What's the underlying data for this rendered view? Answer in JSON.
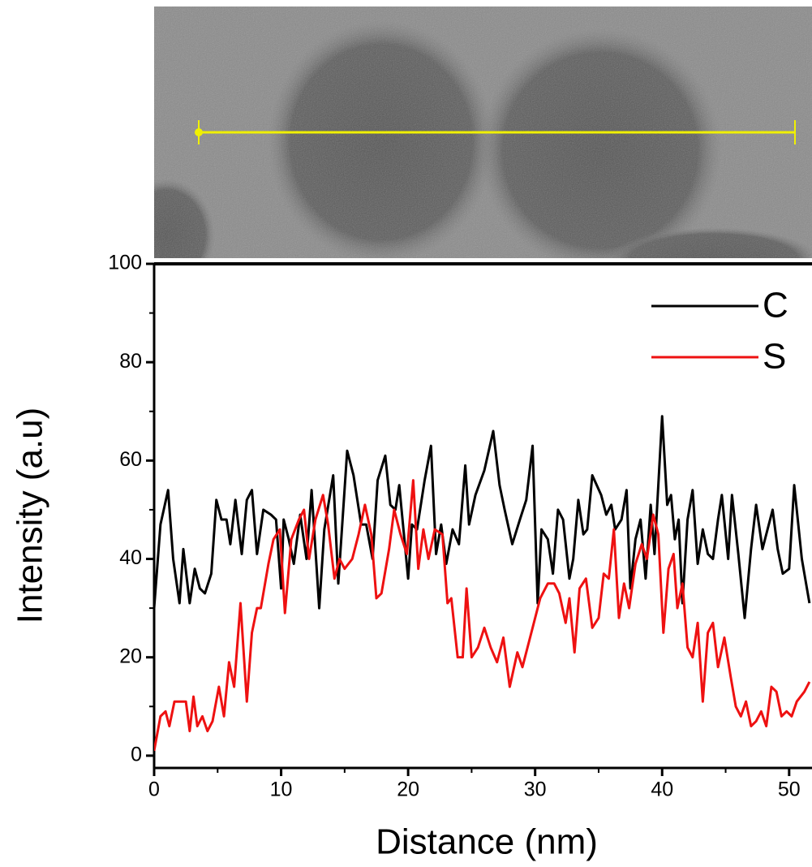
{
  "chart_data": {
    "type": "line",
    "x_label": "Distance (nm)",
    "y_label": "Intensity (a.u)",
    "xlim": [
      0,
      51.8
    ],
    "ylim": [
      -2.5,
      100
    ],
    "xticks": [
      0,
      10,
      20,
      30,
      40,
      50
    ],
    "yticks": [
      0,
      20,
      40,
      60,
      80,
      100
    ],
    "legend": "upper right",
    "series": [
      {
        "name": "C",
        "color": "#000000",
        "x": [
          0,
          0.5,
          1.1,
          1.5,
          2,
          2.3,
          2.8,
          3.2,
          3.6,
          4,
          4.5,
          4.9,
          5.3,
          5.7,
          6,
          6.4,
          6.9,
          7.3,
          7.7,
          8.1,
          8.6,
          9.2,
          9.6,
          10,
          10.2,
          10.6,
          11,
          11.5,
          12,
          12.4,
          13,
          13.4,
          14.1,
          14.5,
          15.2,
          15.7,
          16.3,
          16.7,
          17.2,
          17.6,
          18.2,
          18.6,
          19,
          19.3,
          20,
          20.3,
          20.7,
          21.3,
          21.8,
          22.2,
          22.6,
          23,
          23.5,
          24,
          24.5,
          24.8,
          25.3,
          26,
          26.7,
          27.2,
          27.6,
          28.2,
          28.8,
          29.3,
          29.8,
          30.2,
          30.5,
          31,
          31.4,
          31.8,
          32.2,
          32.7,
          33,
          33.4,
          33.8,
          34.1,
          34.5,
          35.2,
          35.6,
          36,
          36.3,
          36.8,
          37.2,
          37.5,
          37.9,
          38.3,
          38.7,
          39.1,
          39.4,
          40,
          40.4,
          40.7,
          41,
          41.3,
          41.6,
          42,
          42.4,
          42.8,
          43.2,
          43.6,
          44,
          44.4,
          44.7,
          45.2,
          45.5,
          46,
          46.5,
          47,
          47.4,
          47.9,
          48.3,
          48.7,
          49.1,
          49.5,
          50,
          50.4,
          51,
          51.6
        ],
        "values": [
          30,
          47,
          54,
          40,
          31,
          42,
          31,
          38,
          34,
          33,
          37,
          52,
          48,
          48,
          43,
          52,
          41,
          52,
          54,
          41,
          50,
          49,
          48,
          34,
          48,
          44,
          39,
          49,
          40,
          54,
          30,
          46,
          57,
          35,
          62,
          57,
          47,
          47,
          40,
          56,
          61,
          51,
          50,
          55,
          36,
          47,
          46,
          56,
          63,
          41,
          47,
          39,
          46,
          43,
          59,
          47,
          53,
          58,
          66,
          55,
          50,
          43,
          48,
          52,
          63,
          31,
          46,
          44,
          37,
          50,
          48,
          36,
          40,
          52,
          45,
          46,
          57,
          53,
          49,
          51,
          46,
          48,
          54,
          34,
          44,
          48,
          36,
          51,
          41,
          69,
          51,
          53,
          44,
          48,
          31,
          48,
          54,
          39,
          46,
          41,
          40,
          48,
          53,
          40,
          53,
          41,
          28,
          42,
          51,
          42,
          46,
          50,
          42,
          37,
          38,
          55,
          40,
          31
        ]
      },
      {
        "name": "S",
        "color": "#ee1111",
        "x": [
          0,
          0.5,
          0.9,
          1.2,
          1.6,
          2.2,
          2.5,
          2.8,
          3.1,
          3.4,
          3.8,
          4.2,
          4.6,
          5.1,
          5.5,
          5.9,
          6.3,
          6.8,
          7.3,
          7.7,
          8.1,
          8.4,
          9,
          9.4,
          9.9,
          10.3,
          10.8,
          11.4,
          11.8,
          12.2,
          12.7,
          13.3,
          13.7,
          14.2,
          14.6,
          15,
          15.6,
          16.1,
          16.6,
          17.1,
          17.5,
          17.9,
          18.5,
          18.9,
          19.4,
          19.9,
          20.4,
          20.8,
          21.2,
          21.6,
          22.1,
          22.7,
          23.1,
          23.4,
          23.9,
          24.3,
          24.6,
          25,
          25.5,
          26,
          26.5,
          27,
          27.5,
          28,
          28.6,
          29,
          29.8,
          30.4,
          31,
          31.5,
          31.9,
          32.4,
          32.7,
          33.1,
          33.5,
          34,
          34.5,
          35,
          35.4,
          35.8,
          36.2,
          36.6,
          37,
          37.4,
          37.9,
          38.4,
          38.8,
          39.3,
          39.7,
          40.1,
          40.5,
          40.9,
          41.2,
          41.6,
          42,
          42.4,
          42.8,
          43.2,
          43.6,
          44,
          44.4,
          44.9,
          45.4,
          45.8,
          46.2,
          46.6,
          47,
          47.4,
          47.8,
          48.2,
          48.6,
          49,
          49.4,
          49.8,
          50.2,
          50.6,
          51.2,
          51.6
        ],
        "values": [
          1,
          8,
          9,
          6,
          11,
          11,
          11,
          5,
          12,
          6,
          8,
          5,
          7,
          14,
          8,
          19,
          14,
          31,
          11,
          25,
          30,
          30,
          39,
          44,
          46,
          29,
          44,
          48,
          50,
          40,
          48,
          53,
          47,
          36,
          40,
          38,
          40,
          45,
          51,
          45,
          32,
          33,
          42,
          50,
          45,
          41,
          56,
          38,
          46,
          40,
          46,
          45,
          31,
          32,
          20,
          20,
          34,
          20,
          22,
          26,
          22,
          19,
          24,
          14,
          21,
          18,
          26,
          32,
          35,
          35,
          33,
          27,
          32,
          21,
          34,
          36,
          26,
          28,
          37,
          36,
          46,
          28,
          35,
          30,
          39,
          43,
          40,
          49,
          45,
          25,
          38,
          41,
          30,
          35,
          22,
          20,
          27,
          11,
          25,
          27,
          18,
          24,
          16,
          10,
          8,
          11,
          6,
          7,
          9,
          6,
          14,
          13,
          8,
          9,
          8,
          11,
          13,
          15
        ]
      }
    ]
  }
}
